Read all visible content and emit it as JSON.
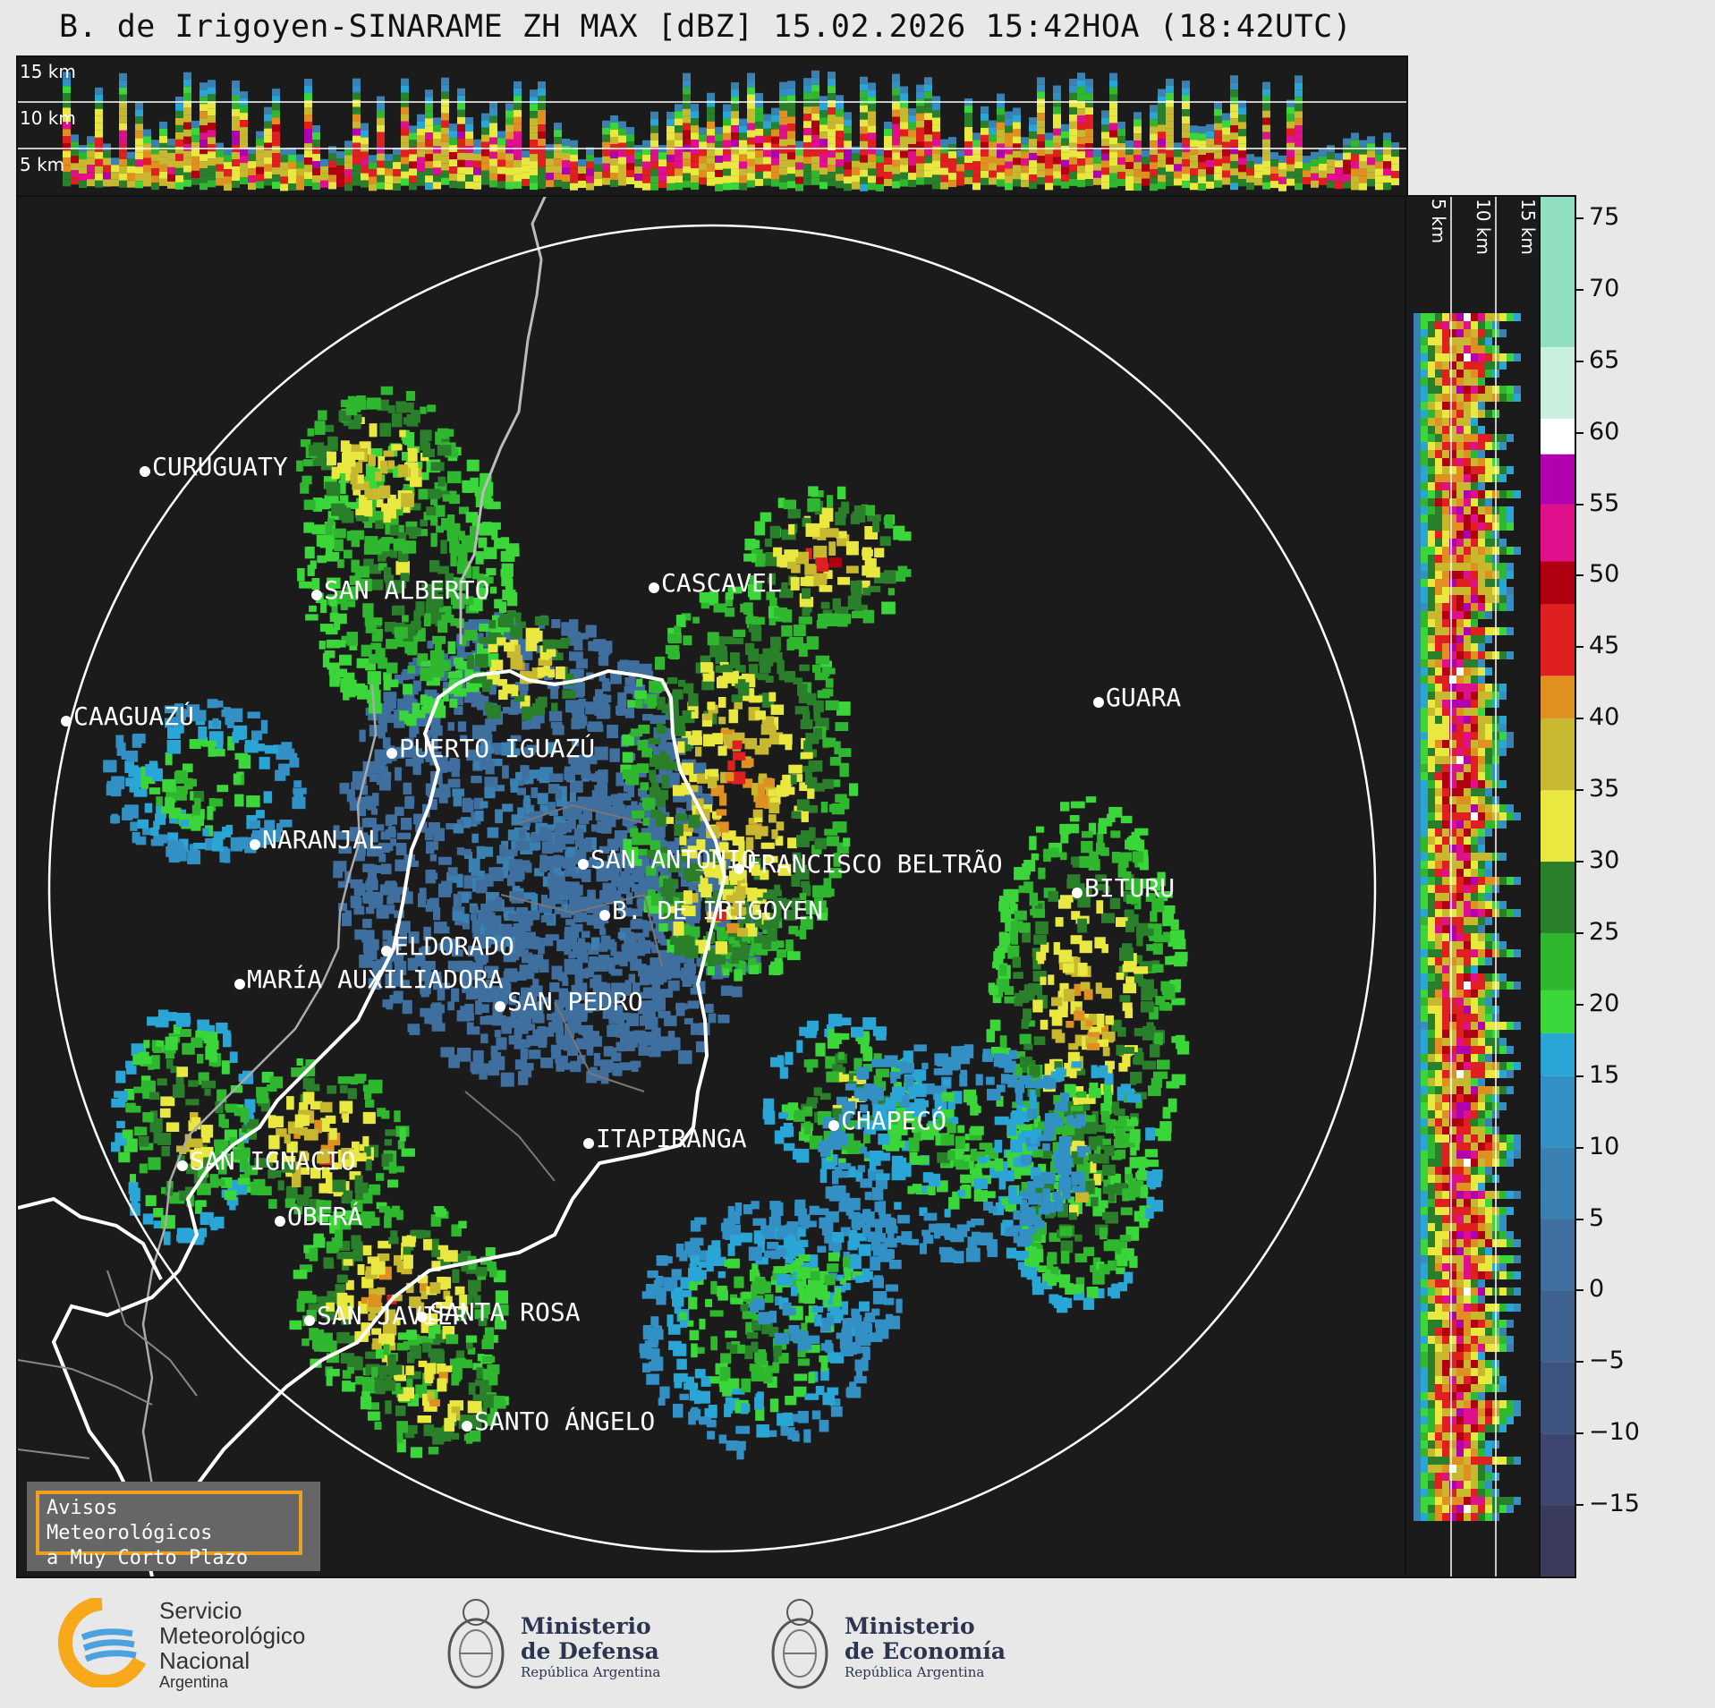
{
  "title": "B. de Irigoyen-SINARAME ZH MAX [dBZ] 15.02.2026 15:42HOA (18:42UTC)",
  "altitude_labels": {
    "top": [
      "15 km",
      "10 km",
      "5 km"
    ],
    "right": [
      "5 km",
      "10 km",
      "15 km"
    ]
  },
  "colorbar": {
    "ticks": [
      {
        "label": "75",
        "value": 75
      },
      {
        "label": "70",
        "value": 70
      },
      {
        "label": "65",
        "value": 65
      },
      {
        "label": "60",
        "value": 60
      },
      {
        "label": "55",
        "value": 55
      },
      {
        "label": "50",
        "value": 50
      },
      {
        "label": "45",
        "value": 45
      },
      {
        "label": "40",
        "value": 40
      },
      {
        "label": "35",
        "value": 35
      },
      {
        "label": "30",
        "value": 30
      },
      {
        "label": "25",
        "value": 25
      },
      {
        "label": "20",
        "value": 20
      },
      {
        "label": "15",
        "value": 15
      },
      {
        "label": "10",
        "value": 10
      },
      {
        "label": "5",
        "value": 5
      },
      {
        "label": "0",
        "value": 0
      },
      {
        "label": "−5",
        "value": -5
      },
      {
        "label": "−10",
        "value": -10
      },
      {
        "label": "−15",
        "value": -15
      }
    ],
    "range": [
      -20,
      76.5
    ],
    "stops": [
      {
        "from": -20,
        "to": -15,
        "color": "#3a3a5c"
      },
      {
        "from": -15,
        "to": -10,
        "color": "#3d4670"
      },
      {
        "from": -10,
        "to": -5,
        "color": "#3d5380"
      },
      {
        "from": -5,
        "to": 0,
        "color": "#3e6190"
      },
      {
        "from": 0,
        "to": 5,
        "color": "#3f6f9e"
      },
      {
        "from": 5,
        "to": 10,
        "color": "#3a80b0"
      },
      {
        "from": 10,
        "to": 15,
        "color": "#3290c4"
      },
      {
        "from": 15,
        "to": 18,
        "color": "#2aa6d6"
      },
      {
        "from": 18,
        "to": 21,
        "color": "#3ad63a"
      },
      {
        "from": 21,
        "to": 25,
        "color": "#2fb82f"
      },
      {
        "from": 25,
        "to": 30,
        "color": "#2a7f2a"
      },
      {
        "from": 30,
        "to": 35,
        "color": "#e8e840"
      },
      {
        "from": 35,
        "to": 40,
        "color": "#c8b830"
      },
      {
        "from": 40,
        "to": 43,
        "color": "#e09020"
      },
      {
        "from": 43,
        "to": 48,
        "color": "#e02020"
      },
      {
        "from": 48,
        "to": 51,
        "color": "#b00010"
      },
      {
        "from": 51,
        "to": 55,
        "color": "#e0108c"
      },
      {
        "from": 55,
        "to": 58.5,
        "color": "#b000b0"
      },
      {
        "from": 58.5,
        "to": 61,
        "color": "#ffffff"
      },
      {
        "from": 61,
        "to": 66,
        "color": "#c8f0dc"
      },
      {
        "from": 66,
        "to": 76.5,
        "color": "#90e0c0"
      }
    ]
  },
  "cities": [
    {
      "name": "CURUGUATY"
    },
    {
      "name": "SAN ALBERTO"
    },
    {
      "name": "CASCAVEL"
    },
    {
      "name": "CAAGUAZÚ"
    },
    {
      "name": "GUARA"
    },
    {
      "name": "PUERTO IGUAZÚ"
    },
    {
      "name": "NARANJAL"
    },
    {
      "name": "SAN ANTONIO"
    },
    {
      "name": "FRANCISCO BELTRÃO"
    },
    {
      "name": "BITURU"
    },
    {
      "name": "B. DE IRIGOYEN"
    },
    {
      "name": "ELDORADO"
    },
    {
      "name": "MARÍA AUXILIADORA"
    },
    {
      "name": "SAN PEDRO"
    },
    {
      "name": "CHAPECÓ"
    },
    {
      "name": "ITAPIRANGA"
    },
    {
      "name": "SAN IGNACIO"
    },
    {
      "name": "OBERÁ"
    },
    {
      "name": "SAN JAVIER"
    },
    {
      "name": "SANTA ROSA"
    },
    {
      "name": "SANTO ÁNGELO"
    }
  ],
  "avisos": {
    "line1": "Avisos Meteorológicos",
    "line2": "a Muy Corto Plazo"
  },
  "logos": {
    "smn": {
      "line1": "Servicio",
      "line2": "Meteorológico",
      "line3": "Nacional",
      "line4": "Argentina"
    },
    "defensa": {
      "line1": "Ministerio",
      "line2": "de Defensa",
      "line3": "República Argentina"
    },
    "economia": {
      "line1": "Ministerio",
      "line2": "de Economía",
      "line3": "República Argentina"
    }
  },
  "colors": {
    "background": "#e8e8e8",
    "panel": "#1b1b1b",
    "range_ring": "#ffffff",
    "smn_orange": "#f7a81b",
    "smn_blue": "#4aa3df"
  }
}
